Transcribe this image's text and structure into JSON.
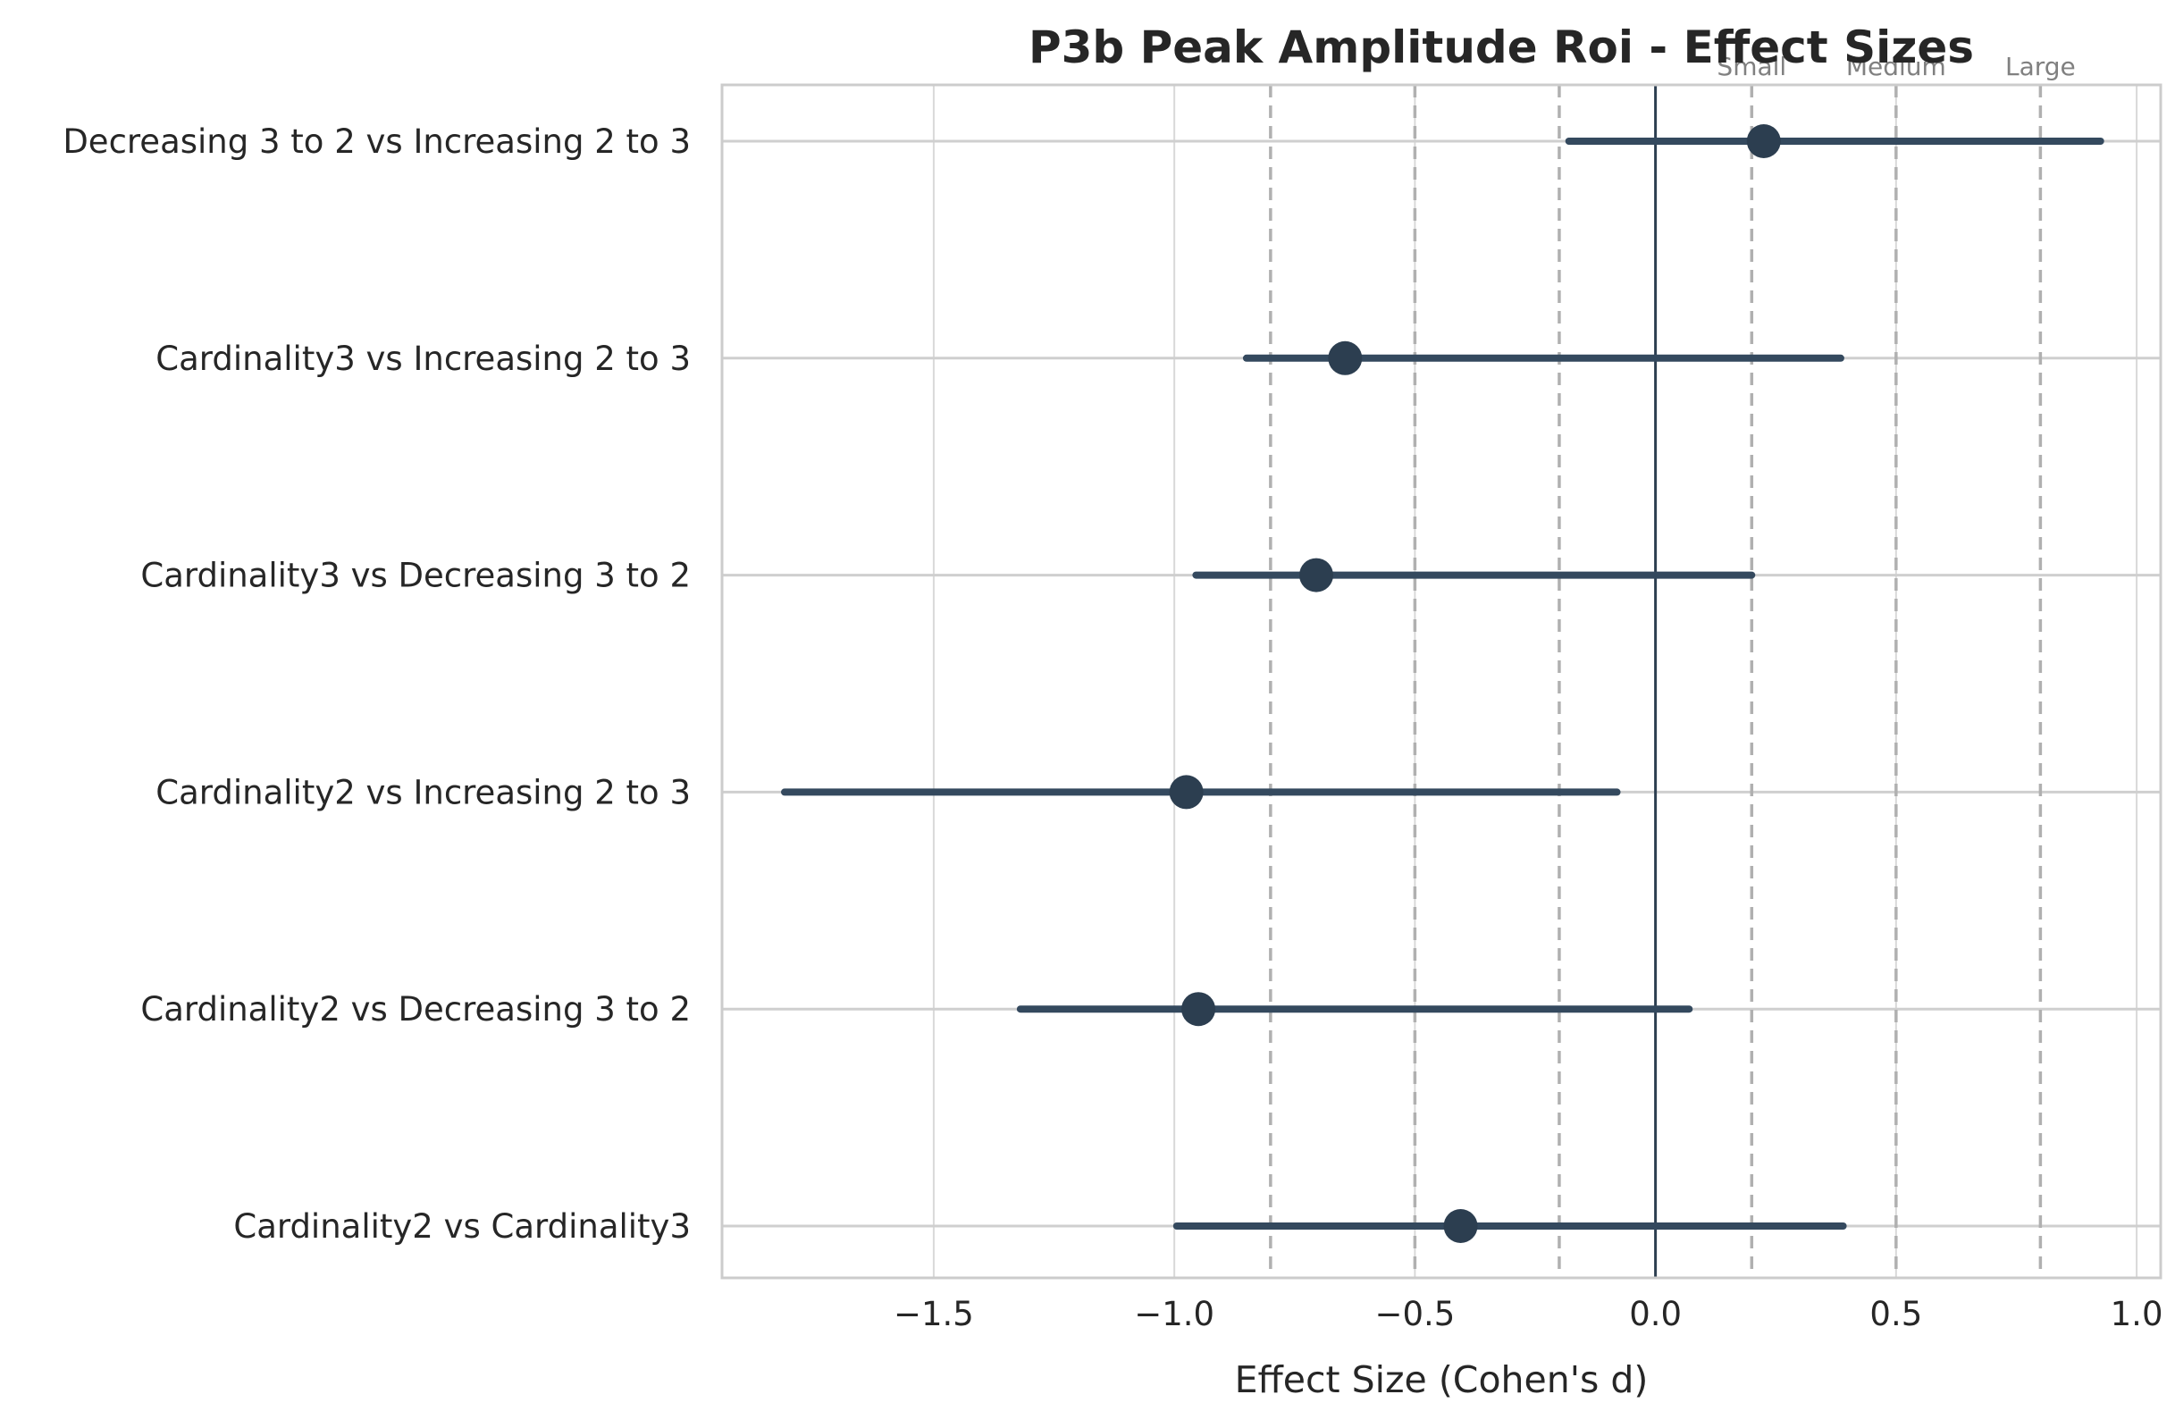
{
  "chart_data": {
    "type": "scatter",
    "title": "P3b Peak Amplitude Roi - Effect Sizes",
    "xlabel": "Effect Size (Cohen's d)",
    "ylabel": "",
    "xlim": [
      -1.94,
      1.05
    ],
    "x_ticks": [
      {
        "value": -1.5,
        "label": "−1.5"
      },
      {
        "value": -1.0,
        "label": "−1.0"
      },
      {
        "value": -0.5,
        "label": "−0.5"
      },
      {
        "value": 0.0,
        "label": "0.0"
      },
      {
        "value": 0.5,
        "label": "0.5"
      },
      {
        "value": 1.0,
        "label": "1.0"
      }
    ],
    "grid": true,
    "comparisons": [
      {
        "label": "Decreasing 3 to 2 vs Increasing 2 to 3",
        "d": 0.225,
        "ci_low": -0.18,
        "ci_high": 0.925
      },
      {
        "label": "Cardinality3 vs Increasing 2 to 3",
        "d": -0.645,
        "ci_low": -0.85,
        "ci_high": 0.385
      },
      {
        "label": "Cardinality3 vs Decreasing 3 to 2",
        "d": -0.705,
        "ci_low": -0.955,
        "ci_high": 0.2
      },
      {
        "label": "Cardinality2 vs Increasing 2 to 3",
        "d": -0.975,
        "ci_low": -1.81,
        "ci_high": -0.08
      },
      {
        "label": "Cardinality2 vs Decreasing 3 to 2",
        "d": -0.95,
        "ci_low": -1.32,
        "ci_high": 0.07
      },
      {
        "label": "Cardinality2 vs Cardinality3",
        "d": -0.405,
        "ci_low": -0.995,
        "ci_high": 0.39
      }
    ],
    "reference_lines": [
      {
        "value": -0.8,
        "label": ""
      },
      {
        "value": -0.5,
        "label": ""
      },
      {
        "value": -0.2,
        "label": ""
      },
      {
        "value": 0.2,
        "label": "Small"
      },
      {
        "value": 0.5,
        "label": "Medium"
      },
      {
        "value": 0.8,
        "label": "Large"
      }
    ],
    "zero_line": 0.0,
    "colors": {
      "marker": "#2c3e50",
      "ci_line": "#34495e",
      "zero_line": "#2c3e50",
      "reference_line": "#b0b0b0",
      "grid": "#d9d9d9",
      "axis_frame": "#cccccc",
      "text": "#262626",
      "reference_label": "#808080"
    }
  }
}
